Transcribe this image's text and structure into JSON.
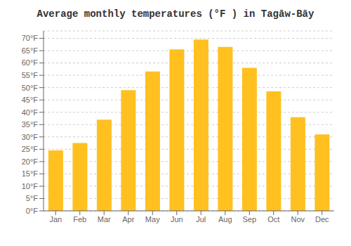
{
  "chart_data": {
    "type": "bar",
    "title": "Average monthly temperatures (°F ) in Tagāw-Bāy",
    "categories": [
      "Jan",
      "Feb",
      "Mar",
      "Apr",
      "May",
      "Jun",
      "Jul",
      "Aug",
      "Sep",
      "Oct",
      "Nov",
      "Dec"
    ],
    "values": [
      24.5,
      27.5,
      37.0,
      49.0,
      56.5,
      65.5,
      69.5,
      66.5,
      58.0,
      48.5,
      38.0,
      31.0
    ],
    "color": "#FFC020",
    "ylim": [
      0,
      73
    ],
    "yticks": [
      {
        "value": 0,
        "label": "0°F"
      },
      {
        "value": 5,
        "label": "5°F"
      },
      {
        "value": 10,
        "label": "10°F"
      },
      {
        "value": 15,
        "label": "15°F"
      },
      {
        "value": 20,
        "label": "20°F"
      },
      {
        "value": 25,
        "label": "25°F"
      },
      {
        "value": 30,
        "label": "30°F"
      },
      {
        "value": 35,
        "label": "35°F"
      },
      {
        "value": 40,
        "label": "40°F"
      },
      {
        "value": 45,
        "label": "45°F"
      },
      {
        "value": 50,
        "label": "50°F"
      },
      {
        "value": 55,
        "label": "55°F"
      },
      {
        "value": 60,
        "label": "60°F"
      },
      {
        "value": 65,
        "label": "65°F"
      },
      {
        "value": 70,
        "label": "70°F"
      }
    ],
    "grid": true
  }
}
